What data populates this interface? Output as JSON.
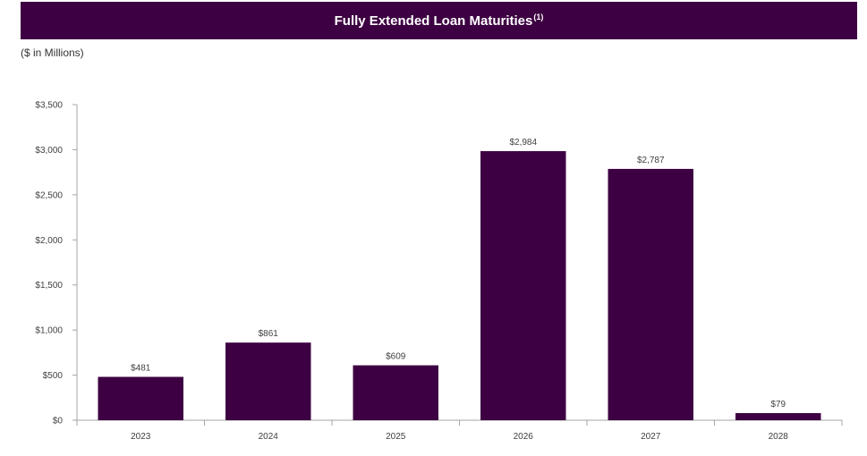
{
  "header": {
    "title": "Fully Extended Loan Maturities",
    "title_note": "(1)",
    "subtitle": "($ in Millions)"
  },
  "colors": {
    "header_bg": "#3d0042",
    "bar": "#3d0042",
    "axis": "#a6a6a6"
  },
  "chart_data": {
    "type": "bar",
    "title": "Fully Extended Loan Maturities",
    "subtitle": "($ in Millions)",
    "categories": [
      "2023",
      "2024",
      "2025",
      "2026",
      "2027",
      "2028"
    ],
    "values": [
      481,
      861,
      609,
      2984,
      2787,
      79
    ],
    "data_labels": [
      "$481",
      "$861",
      "$609",
      "$2,984",
      "$2,787",
      "$79"
    ],
    "ylim": [
      0,
      3500
    ],
    "yticks": [
      0,
      500,
      1000,
      1500,
      2000,
      2500,
      3000,
      3500
    ],
    "ytick_labels": [
      "$0",
      "$500",
      "$1,000",
      "$1,500",
      "$2,000",
      "$2,500",
      "$3,000",
      "$3,500"
    ],
    "xlabel": "",
    "ylabel": "",
    "grid": false,
    "legend": "none"
  }
}
